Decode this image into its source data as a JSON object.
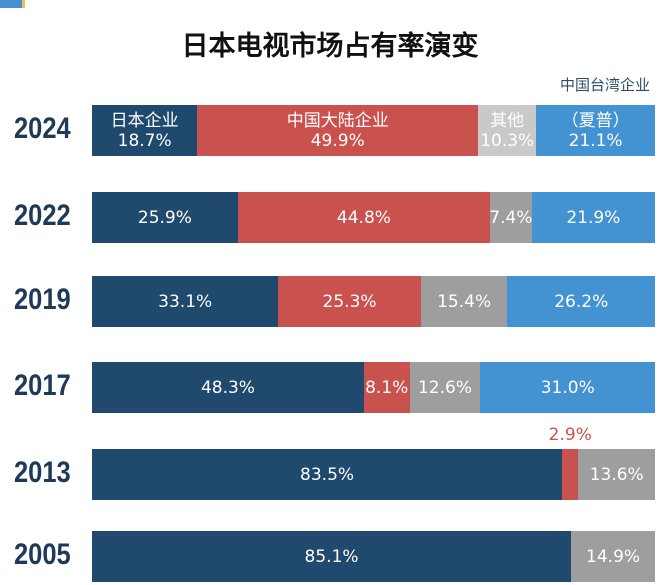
{
  "title": "日本电视市场占有率演变",
  "colors": {
    "japan": "#1f4a6e",
    "china": "#c9524f",
    "other": "#9e9e9e",
    "other_2024": "#c9c9c9",
    "taiwan": "#4393d2"
  },
  "legend_labels": {
    "japan": "日本企业",
    "china": "中国大陆企业",
    "other": "其他",
    "taiwan_top": "中国台湾企业",
    "taiwan": "（夏普）"
  },
  "chart_data": {
    "type": "bar",
    "orientation": "horizontal",
    "stacked": true,
    "title": "日本电视市场占有率演变",
    "categories": [
      "2024",
      "2022",
      "2019",
      "2017",
      "2013",
      "2005"
    ],
    "series": [
      {
        "name": "日本企业",
        "values": [
          18.7,
          25.9,
          33.1,
          48.3,
          83.5,
          85.1
        ]
      },
      {
        "name": "中国大陆企业",
        "values": [
          49.9,
          44.8,
          25.3,
          8.1,
          2.9,
          null
        ]
      },
      {
        "name": "其他",
        "values": [
          10.3,
          7.4,
          15.4,
          12.6,
          13.6,
          14.9
        ]
      },
      {
        "name": "中国台湾企业（夏普）",
        "values": [
          21.1,
          21.9,
          26.2,
          31.0,
          null,
          null
        ]
      }
    ],
    "labels": [
      [
        "18.7%",
        "49.9%",
        "10.3%",
        "21.1%"
      ],
      [
        "25.9%",
        "44.8%",
        "7.4%",
        "21.9%"
      ],
      [
        "33.1%",
        "25.3%",
        "15.4%",
        "26.2%"
      ],
      [
        "48.3%",
        "8.1%",
        "12.6%",
        "31.0%"
      ],
      [
        "83.5%",
        "2.9%",
        "13.6%",
        null
      ],
      [
        "85.1%",
        null,
        "14.9%",
        null
      ]
    ],
    "legend": "inline",
    "grid": false
  }
}
